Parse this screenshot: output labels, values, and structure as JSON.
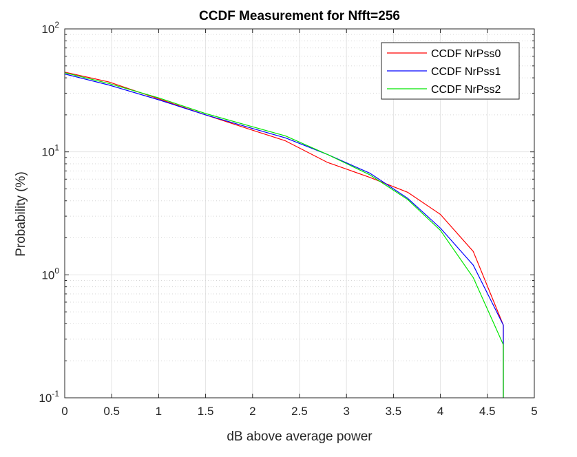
{
  "chart_data": {
    "type": "line",
    "title": "CCDF Measurement for Nfft=256",
    "xlabel": "dB above average power",
    "ylabel": "Probability (%)",
    "xlim": [
      0,
      5
    ],
    "ylim": [
      0.1,
      100
    ],
    "yscale": "log",
    "grid": true,
    "minor_grid": true,
    "legend_position": "top-right",
    "x_ticks": [
      "0",
      "0.5",
      "1",
      "1.5",
      "2",
      "2.5",
      "3",
      "3.5",
      "4",
      "4.5",
      "5"
    ],
    "y_ticks": [
      {
        "base": "10",
        "exp": "-1"
      },
      {
        "base": "10",
        "exp": "0"
      },
      {
        "base": "10",
        "exp": "1"
      },
      {
        "base": "10",
        "exp": "2"
      }
    ],
    "series": [
      {
        "name": "CCDF NrPss0",
        "color": "#ff0000",
        "x": [
          0,
          0.47,
          1.0,
          1.5,
          2.0,
          2.35,
          2.8,
          3.25,
          3.65,
          4.0,
          4.35,
          4.67,
          4.67
        ],
        "y": [
          44.5,
          37,
          27,
          20,
          15,
          12.3,
          8.2,
          6.2,
          4.7,
          3.1,
          1.55,
          0.39,
          0.1
        ]
      },
      {
        "name": "CCDF NrPss1",
        "color": "#0000ff",
        "x": [
          0,
          0.47,
          1.0,
          1.5,
          2.0,
          2.35,
          2.8,
          3.25,
          3.65,
          4.0,
          4.35,
          4.67,
          4.67
        ],
        "y": [
          43,
          35,
          26.5,
          20,
          15.5,
          13,
          9.5,
          6.7,
          4.2,
          2.4,
          1.2,
          0.39,
          0.1
        ]
      },
      {
        "name": "CCDF NrPss2",
        "color": "#00e600",
        "x": [
          0,
          0.47,
          1.0,
          1.5,
          2.0,
          2.35,
          2.8,
          3.25,
          3.65,
          4.0,
          4.35,
          4.67,
          4.67
        ],
        "y": [
          44,
          36,
          27.5,
          20.5,
          16,
          13.5,
          9.5,
          6.5,
          4.1,
          2.3,
          0.95,
          0.27,
          0.1
        ]
      }
    ]
  }
}
